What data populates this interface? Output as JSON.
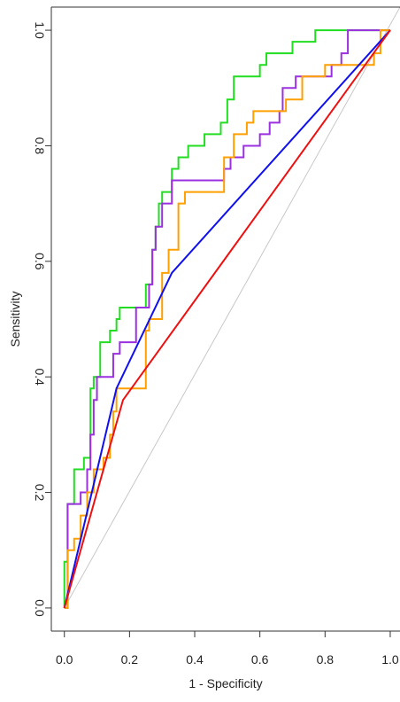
{
  "chart_data": {
    "type": "line",
    "title": "",
    "xlabel": "1 - Specificity",
    "ylabel": "Sensitivity",
    "xlim": [
      -0.04,
      1.03
    ],
    "ylim": [
      -0.04,
      1.04
    ],
    "x_ticks": [
      "0.0",
      "0.2",
      "0.4",
      "0.6",
      "0.8",
      "1.0"
    ],
    "y_ticks": [
      "0.0",
      "0.2",
      "0.4",
      "0.6",
      "0.8",
      "1.0"
    ],
    "grid": false,
    "legend": "none",
    "reference_line": {
      "color": "#c8c8c8",
      "points": [
        [
          0,
          0
        ],
        [
          1.03,
          1.04
        ]
      ]
    },
    "series": [
      {
        "color": "#22dd22",
        "points": [
          [
            0,
            0
          ],
          [
            0,
            0.08
          ],
          [
            0.01,
            0.08
          ],
          [
            0.01,
            0.18
          ],
          [
            0.03,
            0.18
          ],
          [
            0.03,
            0.24
          ],
          [
            0.06,
            0.24
          ],
          [
            0.06,
            0.26
          ],
          [
            0.08,
            0.26
          ],
          [
            0.08,
            0.38
          ],
          [
            0.09,
            0.38
          ],
          [
            0.09,
            0.4
          ],
          [
            0.11,
            0.4
          ],
          [
            0.11,
            0.46
          ],
          [
            0.14,
            0.46
          ],
          [
            0.14,
            0.48
          ],
          [
            0.16,
            0.48
          ],
          [
            0.16,
            0.5
          ],
          [
            0.17,
            0.5
          ],
          [
            0.17,
            0.52
          ],
          [
            0.25,
            0.52
          ],
          [
            0.25,
            0.56
          ],
          [
            0.27,
            0.56
          ],
          [
            0.27,
            0.62
          ],
          [
            0.28,
            0.62
          ],
          [
            0.28,
            0.66
          ],
          [
            0.29,
            0.66
          ],
          [
            0.29,
            0.7
          ],
          [
            0.3,
            0.7
          ],
          [
            0.3,
            0.72
          ],
          [
            0.33,
            0.72
          ],
          [
            0.33,
            0.76
          ],
          [
            0.35,
            0.76
          ],
          [
            0.35,
            0.78
          ],
          [
            0.38,
            0.78
          ],
          [
            0.38,
            0.8
          ],
          [
            0.43,
            0.8
          ],
          [
            0.43,
            0.82
          ],
          [
            0.48,
            0.82
          ],
          [
            0.48,
            0.84
          ],
          [
            0.5,
            0.84
          ],
          [
            0.5,
            0.88
          ],
          [
            0.52,
            0.88
          ],
          [
            0.52,
            0.92
          ],
          [
            0.6,
            0.92
          ],
          [
            0.6,
            0.94
          ],
          [
            0.62,
            0.94
          ],
          [
            0.62,
            0.96
          ],
          [
            0.7,
            0.96
          ],
          [
            0.7,
            0.98
          ],
          [
            0.77,
            0.98
          ],
          [
            0.77,
            1.0
          ],
          [
            1.0,
            1.0
          ]
        ]
      },
      {
        "color": "#9b30e0",
        "points": [
          [
            0,
            0
          ],
          [
            0.01,
            0
          ],
          [
            0.01,
            0.18
          ],
          [
            0.05,
            0.18
          ],
          [
            0.05,
            0.2
          ],
          [
            0.07,
            0.2
          ],
          [
            0.07,
            0.24
          ],
          [
            0.08,
            0.24
          ],
          [
            0.08,
            0.3
          ],
          [
            0.09,
            0.3
          ],
          [
            0.09,
            0.36
          ],
          [
            0.1,
            0.36
          ],
          [
            0.1,
            0.4
          ],
          [
            0.15,
            0.4
          ],
          [
            0.15,
            0.44
          ],
          [
            0.17,
            0.44
          ],
          [
            0.17,
            0.46
          ],
          [
            0.22,
            0.46
          ],
          [
            0.22,
            0.52
          ],
          [
            0.26,
            0.52
          ],
          [
            0.26,
            0.56
          ],
          [
            0.27,
            0.56
          ],
          [
            0.27,
            0.62
          ],
          [
            0.28,
            0.62
          ],
          [
            0.28,
            0.66
          ],
          [
            0.3,
            0.66
          ],
          [
            0.3,
            0.7
          ],
          [
            0.33,
            0.7
          ],
          [
            0.33,
            0.74
          ],
          [
            0.49,
            0.74
          ],
          [
            0.49,
            0.76
          ],
          [
            0.51,
            0.76
          ],
          [
            0.51,
            0.78
          ],
          [
            0.55,
            0.78
          ],
          [
            0.55,
            0.8
          ],
          [
            0.6,
            0.8
          ],
          [
            0.6,
            0.82
          ],
          [
            0.63,
            0.82
          ],
          [
            0.63,
            0.84
          ],
          [
            0.66,
            0.84
          ],
          [
            0.66,
            0.86
          ],
          [
            0.67,
            0.86
          ],
          [
            0.67,
            0.9
          ],
          [
            0.71,
            0.9
          ],
          [
            0.71,
            0.92
          ],
          [
            0.82,
            0.92
          ],
          [
            0.82,
            0.94
          ],
          [
            0.85,
            0.94
          ],
          [
            0.85,
            0.96
          ],
          [
            0.87,
            0.96
          ],
          [
            0.87,
            1.0
          ],
          [
            1.0,
            1.0
          ]
        ]
      },
      {
        "color": "#ffa000",
        "points": [
          [
            0,
            0
          ],
          [
            0.01,
            0
          ],
          [
            0.01,
            0.1
          ],
          [
            0.03,
            0.1
          ],
          [
            0.03,
            0.12
          ],
          [
            0.05,
            0.12
          ],
          [
            0.05,
            0.16
          ],
          [
            0.07,
            0.16
          ],
          [
            0.07,
            0.2
          ],
          [
            0.09,
            0.2
          ],
          [
            0.09,
            0.24
          ],
          [
            0.12,
            0.24
          ],
          [
            0.12,
            0.26
          ],
          [
            0.14,
            0.26
          ],
          [
            0.14,
            0.3
          ],
          [
            0.15,
            0.3
          ],
          [
            0.15,
            0.34
          ],
          [
            0.16,
            0.34
          ],
          [
            0.16,
            0.38
          ],
          [
            0.25,
            0.38
          ],
          [
            0.25,
            0.48
          ],
          [
            0.26,
            0.48
          ],
          [
            0.26,
            0.5
          ],
          [
            0.3,
            0.5
          ],
          [
            0.3,
            0.58
          ],
          [
            0.32,
            0.58
          ],
          [
            0.32,
            0.62
          ],
          [
            0.35,
            0.62
          ],
          [
            0.35,
            0.7
          ],
          [
            0.37,
            0.7
          ],
          [
            0.37,
            0.72
          ],
          [
            0.49,
            0.72
          ],
          [
            0.49,
            0.78
          ],
          [
            0.52,
            0.78
          ],
          [
            0.52,
            0.82
          ],
          [
            0.56,
            0.82
          ],
          [
            0.56,
            0.84
          ],
          [
            0.58,
            0.84
          ],
          [
            0.58,
            0.86
          ],
          [
            0.68,
            0.86
          ],
          [
            0.68,
            0.88
          ],
          [
            0.73,
            0.88
          ],
          [
            0.73,
            0.92
          ],
          [
            0.8,
            0.92
          ],
          [
            0.8,
            0.94
          ],
          [
            0.95,
            0.94
          ],
          [
            0.95,
            0.96
          ],
          [
            0.97,
            0.96
          ],
          [
            0.97,
            1.0
          ],
          [
            1.0,
            1.0
          ]
        ]
      },
      {
        "color": "#1010ee",
        "points": [
          [
            0,
            0
          ],
          [
            0.16,
            0.38
          ],
          [
            0.33,
            0.58
          ],
          [
            1.0,
            1.0
          ]
        ]
      },
      {
        "color": "#ee1010",
        "points": [
          [
            0,
            0
          ],
          [
            0.18,
            0.36
          ],
          [
            1.0,
            1.0
          ]
        ]
      }
    ]
  }
}
